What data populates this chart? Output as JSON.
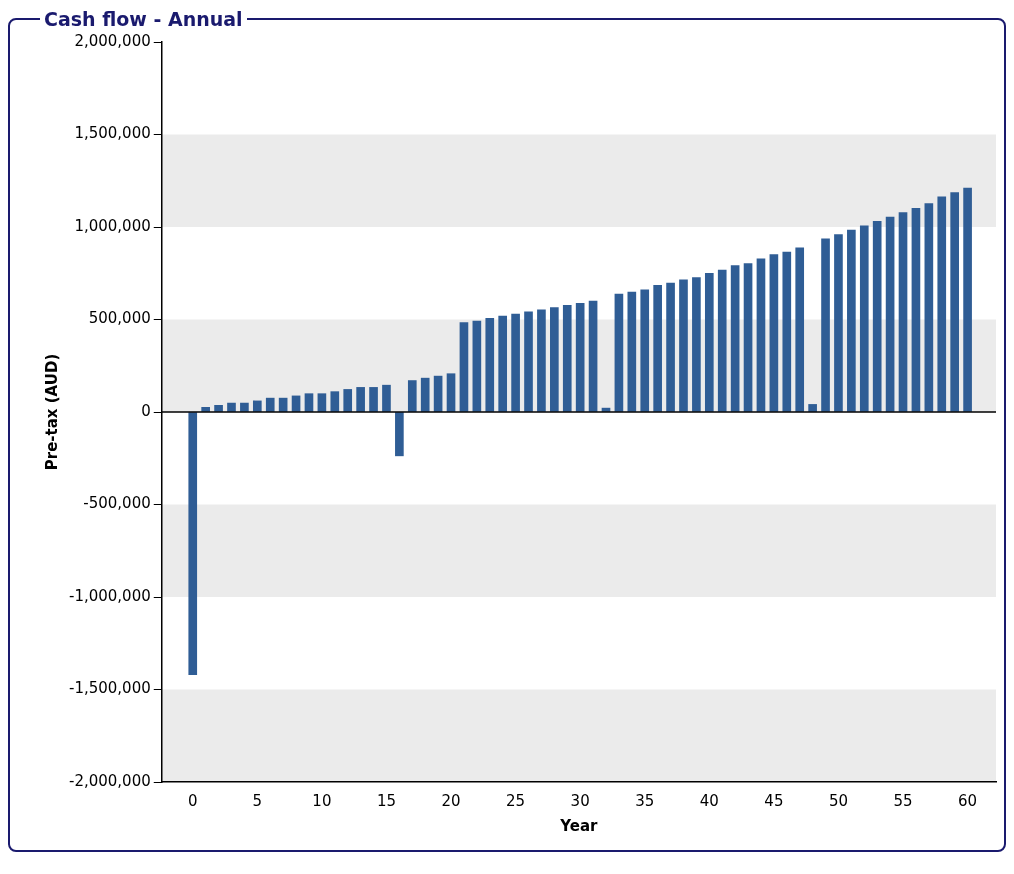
{
  "chart_data": {
    "type": "bar",
    "title": "Cash flow - Annual",
    "xlabel": "Year",
    "ylabel": "Pre-tax (AUD)",
    "x": [
      0,
      1,
      2,
      3,
      4,
      5,
      6,
      7,
      8,
      9,
      10,
      11,
      12,
      13,
      14,
      15,
      16,
      17,
      18,
      19,
      20,
      21,
      22,
      23,
      24,
      25,
      26,
      27,
      28,
      29,
      30,
      31,
      32,
      33,
      34,
      35,
      36,
      37,
      38,
      39,
      40,
      41,
      42,
      43,
      44,
      45,
      46,
      47,
      48,
      49,
      50,
      51,
      52,
      53,
      54,
      55,
      56,
      57,
      58,
      59,
      60
    ],
    "values": [
      -1420000,
      25000,
      36000,
      48000,
      48000,
      60000,
      75000,
      75000,
      87000,
      99000,
      99000,
      110000,
      122000,
      133000,
      133000,
      145000,
      -237000,
      170000,
      183000,
      194000,
      207000,
      483000,
      492000,
      506000,
      518000,
      529000,
      541000,
      552000,
      565000,
      576000,
      588000,
      600000,
      21000,
      637000,
      648000,
      660000,
      685000,
      697000,
      715000,
      727000,
      750000,
      767000,
      791000,
      802000,
      828000,
      851000,
      864000,
      887000,
      41000,
      936000,
      959000,
      984000,
      1007000,
      1030000,
      1054000,
      1078000,
      1101000,
      1126000,
      1163000,
      1186000,
      1210000
    ],
    "color": "#2f5d95",
    "xlim": [
      -2.4,
      62.2
    ],
    "xticks": [
      0,
      5,
      10,
      15,
      20,
      25,
      30,
      35,
      40,
      45,
      50,
      55,
      60
    ],
    "ylim": [
      -2000000,
      2000000
    ],
    "yticks": [
      {
        "value": -2000000,
        "label": "-2,000,000"
      },
      {
        "value": -1500000,
        "label": "-1,500,000"
      },
      {
        "value": -1000000,
        "label": "-1,000,000"
      },
      {
        "value": -500000,
        "label": "-500,000"
      },
      0,
      {
        "value": 500000,
        "label": "500,000"
      },
      {
        "value": 1000000,
        "label": "1,000,000"
      },
      {
        "value": 1500000,
        "label": "1,500,000"
      },
      {
        "value": 2000000,
        "label": "2,000,000"
      }
    ],
    "grid": "y",
    "legend": false
  }
}
